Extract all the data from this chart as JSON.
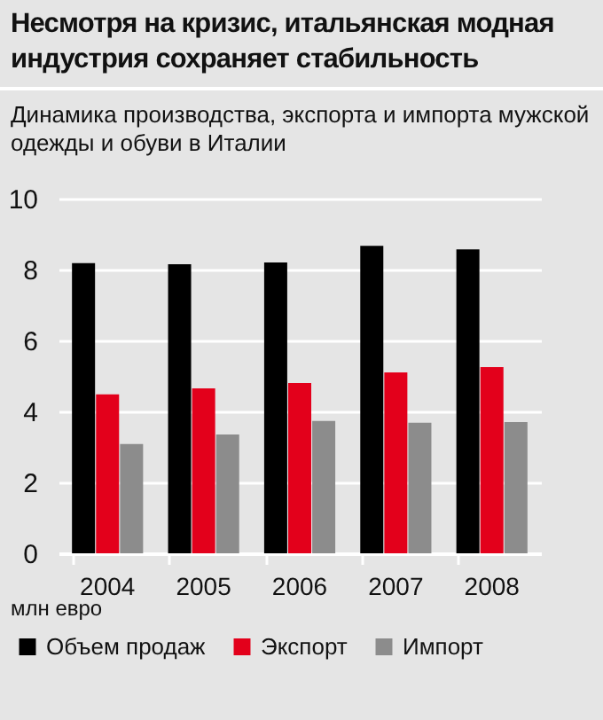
{
  "chart_data": {
    "type": "bar",
    "title": "Несмотря на кризис, итальянская модная индустрия сохраняет стабильность",
    "subtitle": "Динамика производства, экспорта и импорта мужской одежды и обуви в Италии",
    "categories": [
      "2004",
      "2005",
      "2006",
      "2007",
      "2008"
    ],
    "series": [
      {
        "name": "Объем продаж",
        "color": "#000000",
        "values": [
          8.18,
          8.15,
          8.2,
          8.67,
          8.57
        ]
      },
      {
        "name": "Экспорт",
        "color": "#e3001b",
        "values": [
          4.48,
          4.65,
          4.8,
          5.1,
          5.25
        ]
      },
      {
        "name": "Импорт",
        "color": "#8c8c8c",
        "values": [
          3.08,
          3.35,
          3.73,
          3.68,
          3.7
        ]
      }
    ],
    "ylim": [
      0,
      10
    ],
    "yticks": [
      0,
      2,
      4,
      6,
      8,
      10
    ],
    "grid": "y",
    "legend": "bottom left",
    "annotations": [
      "млн евро"
    ]
  }
}
